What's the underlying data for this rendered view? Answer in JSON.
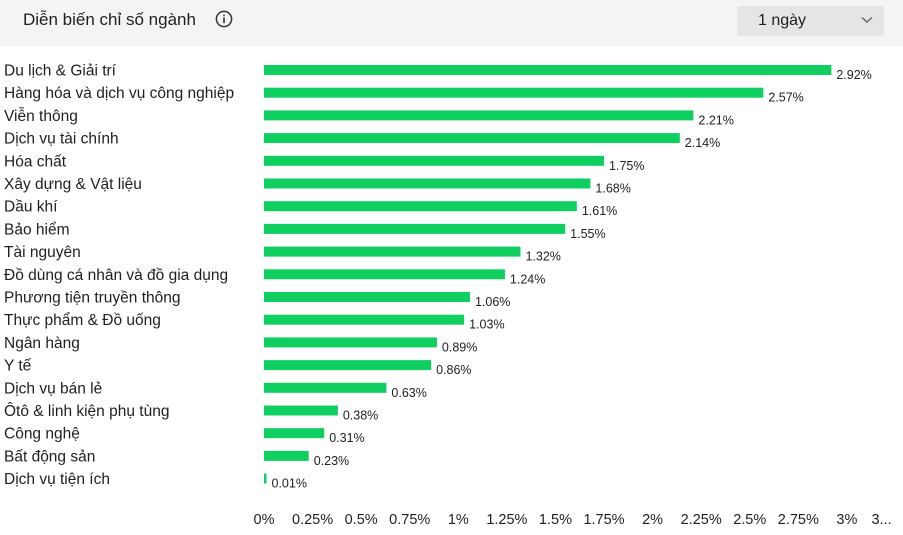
{
  "header": {
    "title": "Diễn biến chỉ số ngành",
    "info_icon": "info-circle-icon",
    "range": {
      "selected": "1 ngày",
      "icon": "chevron-down-icon"
    }
  },
  "chart_data": {
    "type": "bar",
    "orientation": "horizontal",
    "categories": [
      "Du lịch & Giải trí",
      "Hàng hóa và dịch vụ công nghiệp",
      "Viễn thông",
      "Dịch vụ tài chính",
      "Hóa chất",
      "Xây dựng & Vật liệu",
      "Dầu khí",
      "Bảo hiểm",
      "Tài nguyên",
      "Đồ dùng cá nhân và đồ gia dụng",
      "Phương tiện truyền thông",
      "Thực phẩm & Đồ uống",
      "Ngân hàng",
      "Y tế",
      "Dịch vụ bán lẻ",
      "Ôtô & linh kiện phụ tùng",
      "Công nghệ",
      "Bất động sản",
      "Dịch vụ tiện ích"
    ],
    "values": [
      2.92,
      2.57,
      2.21,
      2.14,
      1.75,
      1.68,
      1.61,
      1.55,
      1.32,
      1.24,
      1.06,
      1.03,
      0.89,
      0.86,
      0.63,
      0.38,
      0.31,
      0.23,
      0.01
    ],
    "value_labels": [
      "2.92%",
      "2.57%",
      "2.21%",
      "2.14%",
      "1.75%",
      "1.68%",
      "1.61%",
      "1.55%",
      "1.32%",
      "1.24%",
      "1.06%",
      "1.03%",
      "0.89%",
      "0.86%",
      "0.63%",
      "0.38%",
      "0.31%",
      "0.23%",
      "0.01%"
    ],
    "x_ticks": [
      0,
      0.25,
      0.5,
      0.75,
      1,
      1.25,
      1.5,
      1.75,
      2,
      2.25,
      2.5,
      2.75,
      3,
      3.25
    ],
    "x_tick_labels": [
      "0%",
      "0.25%",
      "0.5%",
      "0.75%",
      "1%",
      "1.25%",
      "1.5%",
      "1.75%",
      "2%",
      "2.25%",
      "2.5%",
      "2.75%",
      "3%",
      "3..."
    ],
    "xlim": [
      0,
      3.25
    ],
    "color": "#0fcf60",
    "grid": false,
    "legend": "none"
  }
}
